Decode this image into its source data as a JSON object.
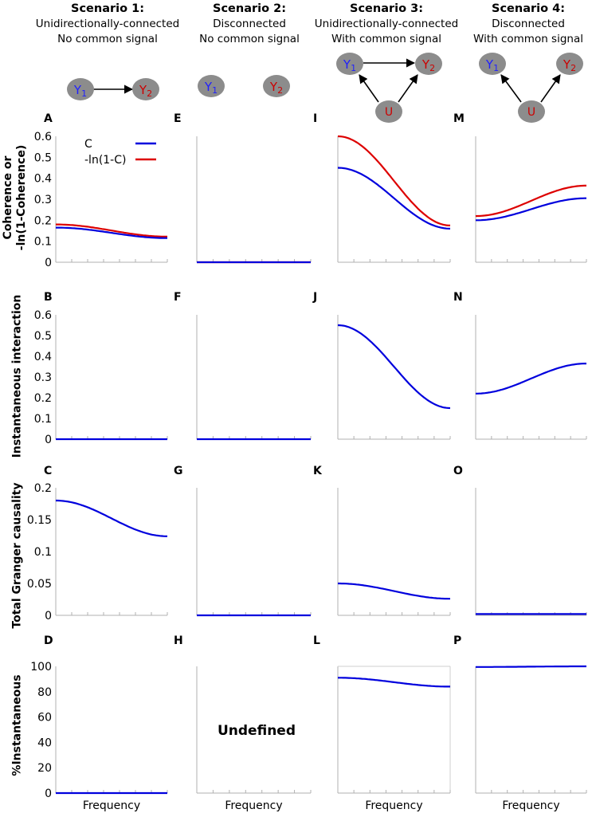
{
  "scenarios": [
    {
      "title": "Scenario 1:",
      "line1": "Unidirectionally-connected",
      "line2": "No common signal"
    },
    {
      "title": "Scenario 2:",
      "line1": "Disconnected",
      "line2": "No common signal"
    },
    {
      "title": "Scenario 3:",
      "line1": "Unidirectionally-connected",
      "line2": "With common signal"
    },
    {
      "title": "Scenario 4:",
      "line1": "Disconnected",
      "line2": "With common signal"
    }
  ],
  "nodes": {
    "y1": "Y1",
    "y1_main": "Y",
    "y1_sub": "1",
    "y2": "Y2",
    "y2_main": "Y",
    "y2_sub": "2",
    "u": "U"
  },
  "row_labels": {
    "row1_line1": "Coherence or",
    "row1_line2": "-ln(1-Coherence)",
    "row2": "Instantaneous interaction",
    "row3": "Total Granger causality",
    "row4": "%Instantaneous"
  },
  "legend": {
    "c": "C",
    "ln": "-ln(1-C)"
  },
  "panel_labels": [
    "A",
    "E",
    "I",
    "M",
    "B",
    "F",
    "J",
    "N",
    "C",
    "G",
    "K",
    "O",
    "D",
    "H",
    "L",
    "P"
  ],
  "x_label": "Frequency",
  "undefined_text": "Undefined",
  "colors": {
    "c": "#0000dd",
    "ln": "#dd0000",
    "node": "#8c8c8c",
    "blue_text": "#1f1fff",
    "red_text": "#cc0000",
    "axis": "#b0b0b0"
  },
  "chart_data": [
    {
      "type": "line",
      "row": "Coherence or -ln(1-Coherence)",
      "ylim": [
        0,
        0.6
      ],
      "yticks": [
        "0",
        "0.1",
        "0.2",
        "0.3",
        "0.4",
        "0.5",
        "0.6"
      ],
      "panels": [
        {
          "label": "A",
          "series": [
            {
              "name": "C",
              "start": 0.165,
              "end": 0.115
            },
            {
              "name": "-ln(1-C)",
              "start": 0.18,
              "end": 0.122
            }
          ]
        },
        {
          "label": "E",
          "series": [
            {
              "name": "C",
              "start": 0,
              "end": 0
            },
            {
              "name": "-ln(1-C)",
              "start": 0,
              "end": 0
            }
          ]
        },
        {
          "label": "I",
          "series": [
            {
              "name": "C",
              "start": 0.45,
              "end": 0.16
            },
            {
              "name": "-ln(1-C)",
              "start": 0.6,
              "end": 0.175
            }
          ]
        },
        {
          "label": "M",
          "series": [
            {
              "name": "C",
              "start": 0.2,
              "end": 0.305
            },
            {
              "name": "-ln(1-C)",
              "start": 0.22,
              "end": 0.365
            }
          ]
        }
      ]
    },
    {
      "type": "line",
      "row": "Instantaneous interaction",
      "ylim": [
        0,
        0.6
      ],
      "yticks": [
        "0",
        "0.1",
        "0.2",
        "0.3",
        "0.4",
        "0.5",
        "0.6"
      ],
      "panels": [
        {
          "label": "B",
          "series": [
            {
              "name": "C",
              "start": 0,
              "end": 0
            }
          ]
        },
        {
          "label": "F",
          "series": [
            {
              "name": "C",
              "start": 0,
              "end": 0
            }
          ]
        },
        {
          "label": "J",
          "series": [
            {
              "name": "C",
              "start": 0.55,
              "end": 0.15
            }
          ]
        },
        {
          "label": "N",
          "series": [
            {
              "name": "C",
              "start": 0.22,
              "end": 0.365
            }
          ]
        }
      ]
    },
    {
      "type": "line",
      "row": "Total Granger causality",
      "ylim": [
        0,
        0.2
      ],
      "yticks": [
        "0",
        "0.05",
        "0.1",
        "0.15",
        "0.2"
      ],
      "panels": [
        {
          "label": "C",
          "series": [
            {
              "name": "C",
              "start": 0.18,
              "end": 0.124
            }
          ]
        },
        {
          "label": "G",
          "series": [
            {
              "name": "C",
              "start": 0,
              "end": 0
            }
          ]
        },
        {
          "label": "K",
          "series": [
            {
              "name": "C",
              "start": 0.05,
              "end": 0.026
            }
          ]
        },
        {
          "label": "O",
          "series": [
            {
              "name": "C",
              "start": 0.002,
              "end": 0.002
            }
          ]
        }
      ]
    },
    {
      "type": "line",
      "row": "%Instantaneous",
      "ylim": [
        0,
        100
      ],
      "yticks": [
        "0",
        "20",
        "40",
        "60",
        "80",
        "100"
      ],
      "panels": [
        {
          "label": "D",
          "series": [
            {
              "name": "C",
              "start": 0,
              "end": 0
            }
          ]
        },
        {
          "label": "H",
          "series": []
        },
        {
          "label": "L",
          "series": [
            {
              "name": "C",
              "start": 91,
              "end": 84
            }
          ]
        },
        {
          "label": "P",
          "series": [
            {
              "name": "C",
              "start": 99.5,
              "end": 100
            }
          ]
        }
      ]
    }
  ]
}
